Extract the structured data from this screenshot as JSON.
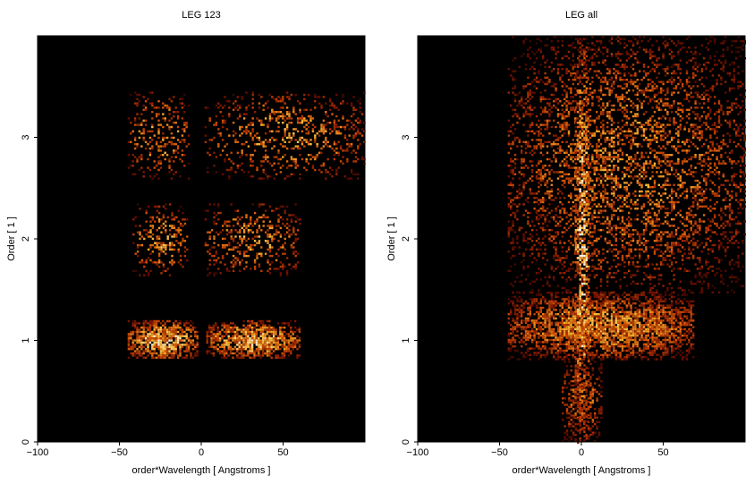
{
  "chart_data": [
    {
      "type": "heatmap",
      "title": "LEG 123",
      "xlabel": "order*Wavelength [ Angstroms ]",
      "ylabel": "Order [ 1 ]",
      "xlim": [
        -100,
        100
      ],
      "ylim": [
        0,
        4
      ],
      "x_ticks": [
        -100,
        -50,
        0,
        50
      ],
      "x_tick_labels": [
        "−100",
        "−50",
        "0",
        "50"
      ],
      "y_ticks": [
        0,
        1,
        2,
        3
      ],
      "y_tick_labels": [
        "0",
        "1",
        "2",
        "3"
      ],
      "colormap": "black-red-orange-yellow-white",
      "background": "#000000",
      "bands": [
        {
          "x0": -45,
          "x1": -3,
          "y0": 0.82,
          "y1": 1.2,
          "density": 0.9,
          "strength": 0.85
        },
        {
          "x0": 3,
          "x1": 60,
          "y0": 0.82,
          "y1": 1.2,
          "density": 0.9,
          "strength": 0.8
        },
        {
          "x0": -42,
          "x1": -8,
          "y0": 1.65,
          "y1": 2.35,
          "density": 0.35,
          "strength": 0.7
        },
        {
          "x0": 2,
          "x1": 60,
          "y0": 1.65,
          "y1": 2.35,
          "density": 0.35,
          "strength": 0.7
        },
        {
          "x0": -45,
          "x1": -8,
          "y0": 2.6,
          "y1": 3.45,
          "density": 0.3,
          "strength": 0.7
        },
        {
          "x0": 2,
          "x1": 100,
          "y0": 2.6,
          "y1": 3.45,
          "density": 0.3,
          "strength": 0.7
        }
      ]
    },
    {
      "type": "heatmap",
      "title": "LEG all",
      "xlabel": "order*Wavelength [ Angstroms ]",
      "ylabel": "Order [ 1 ]",
      "xlim": [
        -100,
        100
      ],
      "ylim": [
        0,
        4
      ],
      "x_ticks": [
        -100,
        -50,
        0,
        50
      ],
      "x_tick_labels": [
        "−100",
        "−50",
        "0",
        "50"
      ],
      "y_ticks": [
        0,
        1,
        2,
        3
      ],
      "y_tick_labels": [
        "0",
        "1",
        "2",
        "3"
      ],
      "colormap": "black-red-orange-yellow-white",
      "background": "#000000",
      "bands": [
        {
          "x0": -45,
          "x1": 68,
          "y0": 0.82,
          "y1": 1.48,
          "density": 0.85,
          "strength": 0.7
        },
        {
          "x0": -45,
          "x1": 100,
          "y0": 1.48,
          "y1": 4.0,
          "density": 0.4,
          "strength": 0.65
        },
        {
          "x0": -12,
          "x1": 12,
          "y0": 0.0,
          "y1": 0.82,
          "density": 0.55,
          "strength": 0.6
        },
        {
          "x0": -4,
          "x1": 4,
          "y0": 0.0,
          "y1": 4.0,
          "density": 0.6,
          "strength": 0.9
        }
      ]
    }
  ]
}
